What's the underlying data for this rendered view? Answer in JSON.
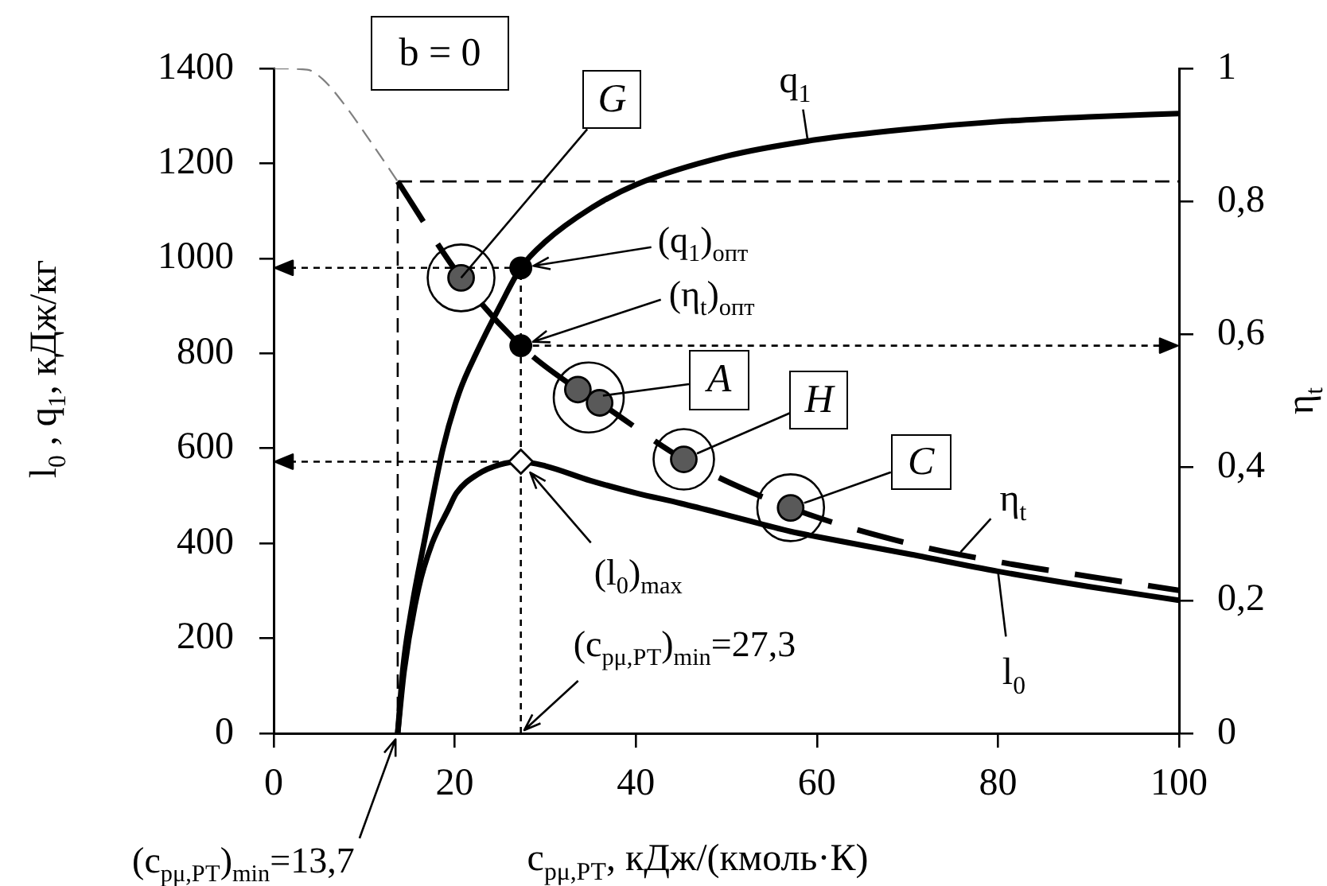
{
  "chart_data": {
    "type": "line",
    "xlabel": "c$_{pμ,РТ}$, кДж/(кмоль·К)",
    "ylabel": "l$_{0}$ , q$_{1}$, кДж/кг",
    "y2label": "η$_{t}$",
    "annotations": [
      "b = 0",
      {
        "text": "G",
        "x": 20.7,
        "y": 959
      },
      {
        "text": "A",
        "x": 34.8,
        "y": 707
      },
      {
        "text": "H",
        "x": 45.3,
        "y": 577
      },
      {
        "text": "C",
        "x": 57.1,
        "y": 475
      },
      {
        "text": "(q$_{1}$)$_{опт}$",
        "x": 27.3,
        "y": 980
      },
      {
        "text": "(η$_{t}$)$_{опт}$",
        "x": 27.3,
        "y": 816
      },
      {
        "text": "(l$_{0}$)$_{max}$",
        "x": 27.3,
        "y": 572
      },
      {
        "text": "(c$_{pμ,РТ}$)$_{min}$=27,3",
        "x": 27.3,
        "y": 0
      },
      {
        "text": "(c$_{pμ,РТ}$)$_{min}$=13,7",
        "x": 13.7,
        "y": 0
      }
    ],
    "xlim": [
      0,
      100
    ],
    "xticks": [
      0,
      20,
      40,
      60,
      80,
      100
    ],
    "ylim": [
      0,
      1400
    ],
    "yticks": [
      0,
      200,
      400,
      600,
      800,
      1000,
      1200,
      1400
    ],
    "y2lim": [
      0,
      1
    ],
    "y2ticks": [
      0,
      {
        "value": 0.2,
        "label": "0,2"
      },
      {
        "value": 0.4,
        "label": "0,4"
      },
      {
        "value": 0.6,
        "label": "0,6"
      },
      {
        "value": 0.8,
        "label": "0,8"
      },
      1
    ],
    "series": [
      {
        "name": "q$_{1}$",
        "color": "#000000",
        "x": [
          13.7,
          14.3,
          15.3,
          16.6,
          18.7,
          20.5,
          22.5,
          25,
          27.3,
          30,
          35,
          40,
          50,
          60,
          70,
          80,
          90,
          100
        ],
        "values": [
          0,
          140,
          270,
          400,
          600,
          718,
          805,
          900,
          980,
          1035,
          1105,
          1155,
          1215,
          1250,
          1272,
          1288,
          1298,
          1305
        ]
      },
      {
        "name": "l$_{0}$",
        "color": "#000000",
        "x": [
          13.7,
          14.4,
          16,
          17.5,
          19.3,
          20.2,
          22.5,
          25,
          27.3,
          30,
          35,
          40,
          45,
          50,
          57.1,
          60,
          70,
          80,
          90,
          100
        ],
        "values": [
          0,
          130,
          305,
          400,
          472,
          506,
          545,
          566,
          572,
          563,
          532,
          506,
          484,
          460,
          425,
          414,
          378,
          341,
          309,
          280
        ]
      },
      {
        "name": "η$_{t}$",
        "axis": "y2",
        "color": "#000000",
        "line_style": "dashed",
        "x": [
          13.7,
          20.7,
          27.3,
          33.6,
          36,
          45.3,
          57.1,
          70,
          80,
          90,
          100
        ],
        "values": [
          0.83,
          0.685,
          0.583,
          0.517,
          0.497,
          0.412,
          0.339,
          0.286,
          0.258,
          0.236,
          0.215
        ]
      },
      {
        "axis": "y2",
        "color": "#808080",
        "line_style": "dashed",
        "x": [
          0,
          3.7,
          5.4,
          7.9,
          10.8,
          13.7
        ],
        "values": [
          1,
          0.998,
          0.984,
          0.944,
          0.888,
          0.83
        ]
      },
      {
        "type": "scatter",
        "axis": "y2",
        "color": "#595959",
        "marker": "circle",
        "x": [
          20.7,
          33.6,
          36,
          45.3,
          57.1
        ],
        "values": [
          0.685,
          0.517,
          0.497,
          0.412,
          0.339
        ]
      },
      {
        "type": "scatter",
        "color": "#000000",
        "marker": "circle",
        "x": [
          27.3
        ],
        "values": [
          980
        ]
      },
      {
        "type": "scatter",
        "axis": "y2",
        "color": "#000000",
        "marker": "circle",
        "x": [
          27.3
        ],
        "values": [
          0.583
        ]
      },
      {
        "type": "scatter",
        "color": "#ffffff",
        "marker": "diamond",
        "x": [
          27.3
        ],
        "values": [
          572
        ]
      }
    ],
    "ref_lines": [
      {
        "axis": "x",
        "value": 13.7,
        "line_style": "dashed"
      },
      {
        "axis": "y2",
        "value": 0.83,
        "line_style": "dashed"
      },
      {
        "axis": "x",
        "value": 27.3,
        "line_style": "dotted"
      },
      {
        "axis": "y",
        "value": 980,
        "line_style": "dotted"
      },
      {
        "axis": "y",
        "value": 572,
        "line_style": "dotted"
      },
      {
        "axis": "y2",
        "value": 0.583,
        "line_style": "dotted"
      }
    ]
  }
}
